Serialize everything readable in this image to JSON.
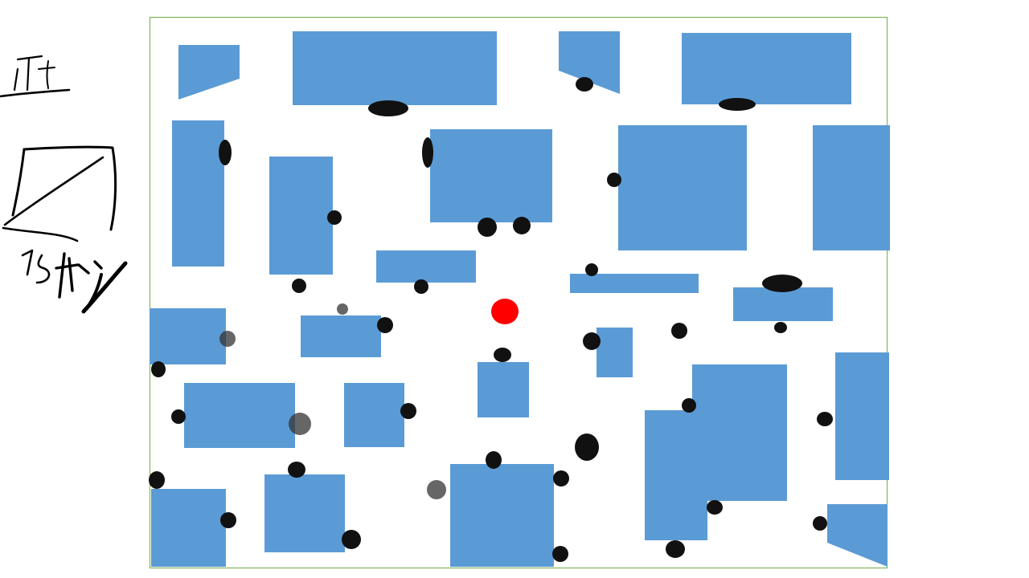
{
  "colors": {
    "wall": "#5b9bd5",
    "player": "#ff0000",
    "border": "#70ad47",
    "ink": "#000000"
  },
  "hud": {
    "tally_mark": "正",
    "timer_text": "15秒",
    "timer_icon": "hourglass-sketch-icon"
  },
  "player": {
    "icon": "player-dot-icon"
  }
}
